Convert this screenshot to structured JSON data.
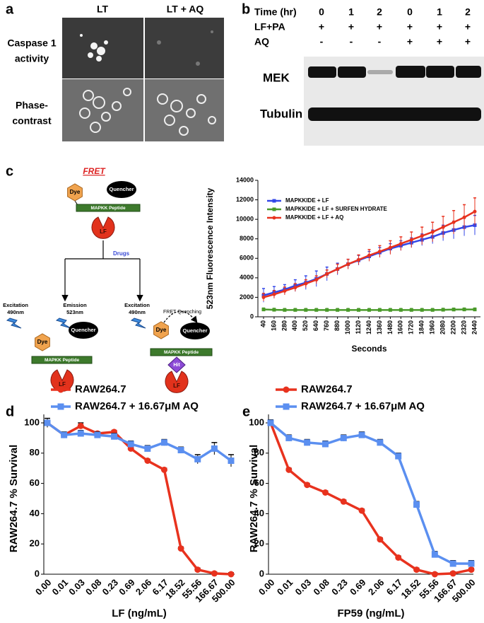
{
  "panel_a": {
    "label": "a",
    "columns": [
      "LT",
      "LT + AQ"
    ],
    "rows": [
      [
        "Caspase 1",
        "activity"
      ],
      [
        "Phase-",
        "contrast"
      ]
    ]
  },
  "panel_b": {
    "label": "b",
    "rows": [
      {
        "label": "Time (hr)",
        "lanes": [
          "0",
          "1",
          "2",
          "0",
          "1",
          "2"
        ]
      },
      {
        "label": "LF+PA",
        "lanes": [
          "+",
          "+",
          "+",
          "+",
          "+",
          "+"
        ]
      },
      {
        "label": "AQ",
        "lanes": [
          "-",
          "-",
          "-",
          "+",
          "+",
          "+"
        ]
      }
    ],
    "blots": [
      "MEK",
      "Tubulin"
    ]
  },
  "panel_c": {
    "label": "c",
    "title": "FRET",
    "top": {
      "dye": "Dye",
      "quencher": "Quencher",
      "peptide": "MAPKK Peptide",
      "enzyme": "LF"
    },
    "drugs": "Drugs",
    "left": {
      "excitation": [
        "Excitation",
        "490nm"
      ],
      "emission": [
        "Emission",
        "523nm"
      ],
      "dye": "Dye",
      "quencher": "Quencher",
      "peptide": "MAPKK Peptide",
      "enzyme": "LF"
    },
    "right": {
      "excitation": [
        "Excitation",
        "490nm"
      ],
      "quenching": "FRET Quenching",
      "dye": "Dye",
      "quencher": "Quencher",
      "peptide": "MAPKK Peptide",
      "hit": "Hit",
      "enzyme": "LF"
    }
  },
  "chart_data": [
    {
      "type": "line",
      "ylabel": "523nm Fluorescence Intensity",
      "xlabel": "Seconds",
      "x": [
        40,
        160,
        280,
        400,
        520,
        640,
        760,
        880,
        1000,
        1120,
        1240,
        1360,
        1480,
        1600,
        1720,
        1840,
        1960,
        2080,
        2200,
        2320,
        2440
      ],
      "xlim": [
        40,
        2440
      ],
      "xticks": [
        40,
        160,
        280,
        400,
        520,
        640,
        760,
        880,
        1000,
        1120,
        1240,
        1360,
        1480,
        1600,
        1720,
        1840,
        1960,
        2080,
        2200,
        2320,
        2440
      ],
      "ylim": [
        0,
        14000
      ],
      "yticks": [
        0,
        2000,
        4000,
        6000,
        8000,
        10000,
        12000,
        14000
      ],
      "legend": "upper left",
      "series": [
        {
          "name": "MAPKKIDE + LF",
          "color": "#3347e8",
          "marker": "square",
          "values": [
            2200,
            2500,
            2800,
            3200,
            3500,
            3900,
            4400,
            4900,
            5400,
            5800,
            6200,
            6600,
            7000,
            7300,
            7600,
            7900,
            8200,
            8600,
            8900,
            9200,
            9400
          ],
          "errors": [
            700,
            600,
            500,
            600,
            700,
            800,
            700,
            600,
            500,
            500,
            500,
            500,
            500,
            500,
            500,
            600,
            700,
            800,
            900,
            900,
            1000
          ]
        },
        {
          "name": "MAPKKIDE + LF + SURFEN HYDRATE",
          "color": "#4a9a2a",
          "marker": "square",
          "values": [
            750,
            720,
            700,
            700,
            700,
            700,
            700,
            700,
            700,
            700,
            700,
            700,
            700,
            700,
            700,
            700,
            700,
            720,
            740,
            750,
            750
          ],
          "errors": [
            150,
            150,
            150,
            150,
            150,
            150,
            150,
            150,
            150,
            150,
            150,
            150,
            150,
            150,
            150,
            150,
            150,
            150,
            150,
            150,
            150
          ]
        },
        {
          "name": "MAPKKIDE + LF + AQ",
          "color": "#e8321e",
          "marker": "circle",
          "values": [
            2000,
            2300,
            2650,
            3000,
            3400,
            3800,
            4400,
            4900,
            5400,
            5850,
            6300,
            6700,
            7100,
            7500,
            7900,
            8300,
            8700,
            9200,
            9700,
            10200,
            10800
          ],
          "errors": [
            400,
            400,
            400,
            400,
            400,
            400,
            400,
            500,
            500,
            500,
            600,
            600,
            700,
            700,
            800,
            900,
            1000,
            1100,
            1200,
            1300,
            1400
          ]
        }
      ]
    },
    {
      "type": "line",
      "label": "d",
      "ylabel": "RAW264.7 % Survival",
      "xlabel": "LF (ng/mL)",
      "categories": [
        "0.00",
        "0.01",
        "0.03",
        "0.08",
        "0.23",
        "0.69",
        "2.06",
        "6.17",
        "18.52",
        "55.56",
        "166.67",
        "500.00"
      ],
      "ylim": [
        0,
        100
      ],
      "yticks": [
        0,
        20,
        40,
        60,
        80,
        100
      ],
      "legend": "top",
      "series": [
        {
          "name": "RAW264.7",
          "color": "#e8321e",
          "marker": "circle",
          "values": [
            100,
            92,
            98,
            93,
            94,
            83,
            75,
            69,
            17,
            3,
            0.5,
            0
          ],
          "errors": [
            1,
            1,
            2,
            1,
            1,
            1,
            1,
            1,
            1,
            1,
            1,
            1
          ]
        },
        {
          "name": "RAW264.7 + 16.67μM AQ",
          "color": "#5b8ff0",
          "marker": "square",
          "values": [
            100,
            92,
            93,
            92,
            91,
            86,
            83,
            87,
            82,
            76,
            83,
            75
          ],
          "errors": [
            3,
            2,
            2,
            2,
            2,
            2,
            2,
            2,
            2,
            3,
            4,
            4
          ]
        }
      ]
    },
    {
      "type": "line",
      "label": "e",
      "ylabel": "RAW264.7 % Survival",
      "xlabel": "FP59 (ng/mL)",
      "categories": [
        "0.00",
        "0.01",
        "0.03",
        "0.08",
        "0.23",
        "0.69",
        "2.06",
        "6.17",
        "18.52",
        "55.56",
        "166.67",
        "500.00"
      ],
      "ylim": [
        0,
        100
      ],
      "yticks": [
        0,
        20,
        40,
        60,
        80,
        100
      ],
      "legend": "top",
      "series": [
        {
          "name": "RAW264.7",
          "color": "#e8321e",
          "marker": "circle",
          "values": [
            100,
            69,
            59,
            54,
            48,
            42,
            23,
            11,
            3,
            0,
            0.5,
            3
          ],
          "errors": [
            1,
            1,
            1,
            1,
            1,
            1,
            1,
            1,
            1,
            1,
            1,
            1
          ]
        },
        {
          "name": "RAW264.7 + 16.67μM AQ",
          "color": "#5b8ff0",
          "marker": "square",
          "values": [
            100,
            90,
            87,
            86,
            90,
            92,
            87,
            78,
            46,
            13,
            7,
            7
          ],
          "errors": [
            2,
            2,
            2,
            2,
            2,
            2,
            2,
            2,
            2,
            2,
            2,
            2
          ]
        }
      ]
    }
  ]
}
